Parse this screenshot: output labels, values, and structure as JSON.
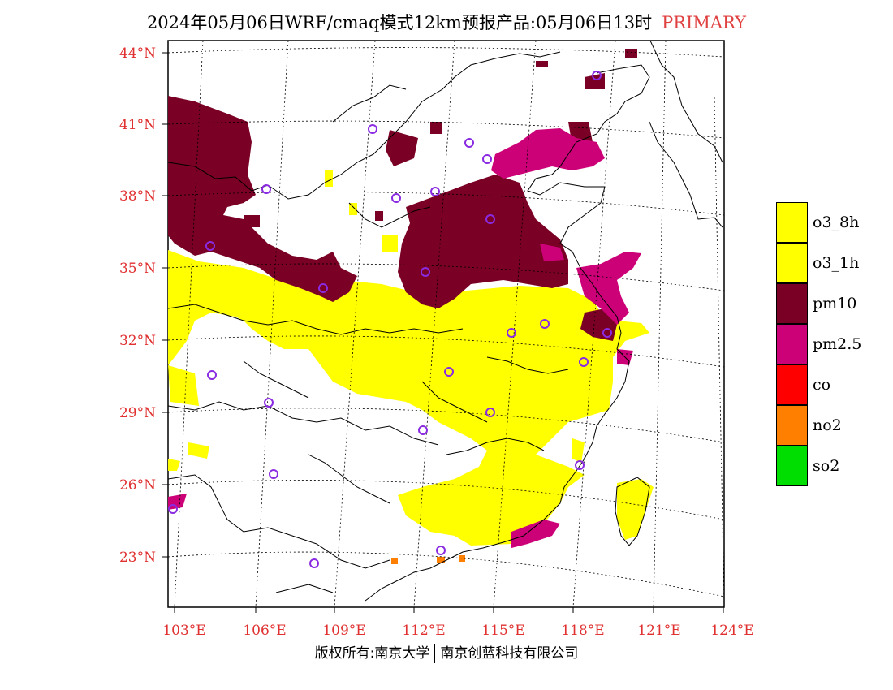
{
  "title": {
    "text": "2024年05月06日WRF/cmaq模式12km预报产品:05月06日13时",
    "tag": "PRIMARY"
  },
  "latitude_labels": [
    "44°N",
    "41°N",
    "38°N",
    "35°N",
    "32°N",
    "29°N",
    "26°N",
    "23°N"
  ],
  "longitude_labels": [
    "103°E",
    "106°E",
    "109°E",
    "112°E",
    "115°E",
    "118°E",
    "121°E",
    "124°E"
  ],
  "legend": [
    {
      "label": "o3_8h",
      "color": "#ffff00"
    },
    {
      "label": "o3_1h",
      "color": "#ffff00"
    },
    {
      "label": "pm10",
      "color": "#7a0025"
    },
    {
      "label": "pm2.5",
      "color": "#cc0077"
    },
    {
      "label": "co",
      "color": "#ff0000"
    },
    {
      "label": "no2",
      "color": "#ff7f00"
    },
    {
      "label": "so2",
      "color": "#00dd00"
    }
  ],
  "copyright": {
    "left": "版权所有:南京大学",
    "right": "南京创蓝科技有限公司"
  },
  "colors": {
    "label_red": "#e03030",
    "o3": "#ffff00",
    "pm10": "#7a0025",
    "pm25": "#cc0077",
    "no2": "#ff7f00",
    "station": "#8a2be2"
  }
}
